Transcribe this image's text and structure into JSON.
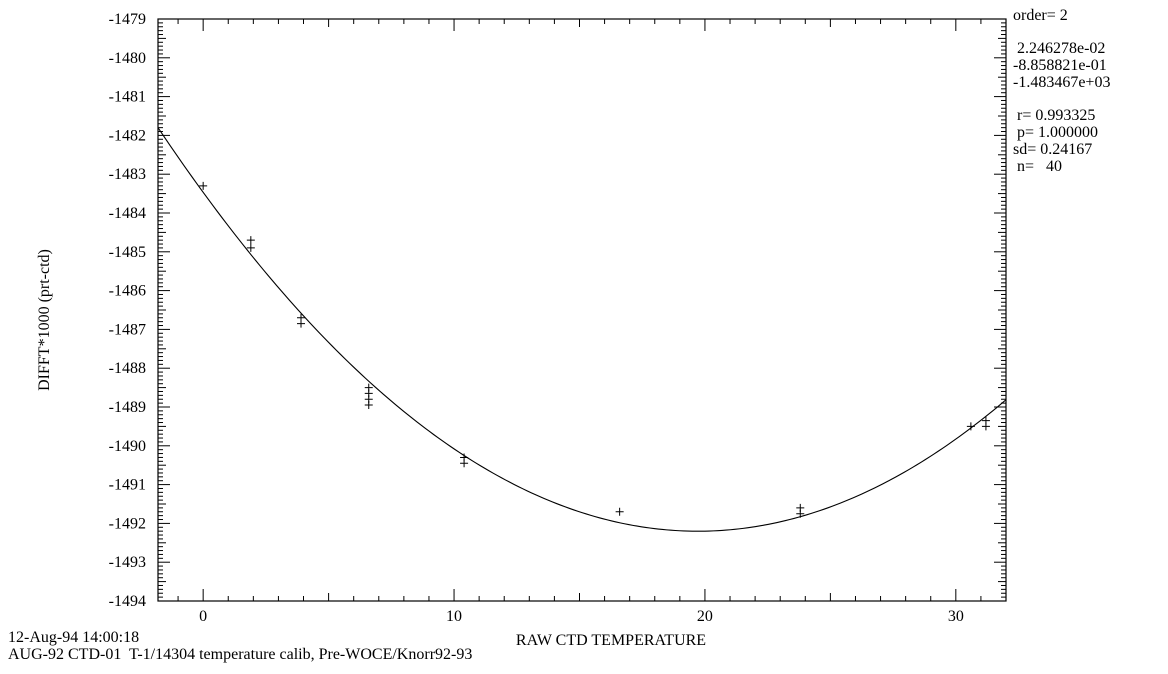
{
  "chart_data": {
    "type": "scatter",
    "xlabel": "RAW CTD TEMPERATURE",
    "ylabel": "DIFFT*1000 (prt-ctd)",
    "xlim": [
      -1.8,
      32
    ],
    "ylim": [
      -1494,
      -1479
    ],
    "x_ticks": [
      0,
      10,
      20,
      30
    ],
    "y_ticks": [
      -1479,
      -1480,
      -1481,
      -1482,
      -1483,
      -1484,
      -1485,
      -1486,
      -1487,
      -1488,
      -1489,
      -1490,
      -1491,
      -1492,
      -1493,
      -1494
    ],
    "points": [
      {
        "x": 0.0,
        "y": -1483.3
      },
      {
        "x": 1.9,
        "y": -1484.7
      },
      {
        "x": 1.9,
        "y": -1484.9
      },
      {
        "x": 3.9,
        "y": -1486.7
      },
      {
        "x": 3.9,
        "y": -1486.85
      },
      {
        "x": 6.6,
        "y": -1488.5
      },
      {
        "x": 6.6,
        "y": -1488.65
      },
      {
        "x": 6.6,
        "y": -1488.8
      },
      {
        "x": 6.6,
        "y": -1488.95
      },
      {
        "x": 10.4,
        "y": -1490.3
      },
      {
        "x": 10.4,
        "y": -1490.45
      },
      {
        "x": 16.6,
        "y": -1491.7
      },
      {
        "x": 23.8,
        "y": -1491.6
      },
      {
        "x": 23.8,
        "y": -1491.75
      },
      {
        "x": 30.6,
        "y": -1489.5
      },
      {
        "x": 31.2,
        "y": -1489.35
      },
      {
        "x": 31.2,
        "y": -1489.5
      }
    ],
    "fit": {
      "order": 2,
      "coefficients": [
        0.02246278,
        -0.8858821,
        -1483.467
      ]
    },
    "grid": false
  },
  "stats": {
    "order": "order= 2",
    "coef_a": " 2.246278e-02",
    "coef_b": "-8.858821e-01",
    "coef_c": "-1.483467e+03",
    "r": " r= 0.993325",
    "p": " p= 1.000000",
    "sd": "sd= 0.24167",
    "n": " n=   40"
  },
  "footer": {
    "timestamp": "12-Aug-94 14:00:18",
    "description": "AUG-92 CTD-01  T-1/14304 temperature calib, Pre-WOCE/Knorr92-93"
  }
}
